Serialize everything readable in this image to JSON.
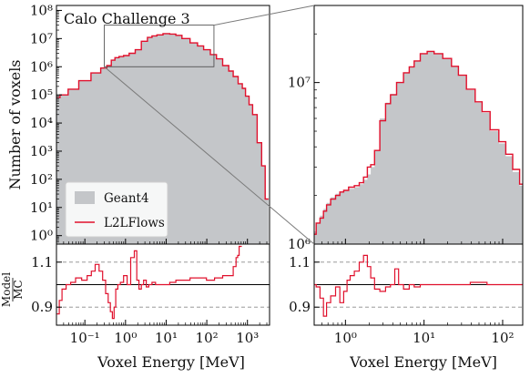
{
  "colors": {
    "geant4_fill": "#c4c6c9",
    "l2lflows_line": "#e0102c",
    "axis": "#000000",
    "zoom_line": "#7a7a7a",
    "ref_dashed": "#8a8a8a"
  },
  "figure": {
    "panel_title": "Calo Challenge 3",
    "ylabel_main": "Number of voxels",
    "ylabel_ratio_num": "Model",
    "ylabel_ratio_den": "MC",
    "xlabel_left": "Voxel Energy [MeV]",
    "xlabel_right": "Voxel Energy [MeV]",
    "legend_geant4": "Geant4",
    "legend_l2lflows": "L2LFlows"
  },
  "chart_data": [
    {
      "type": "area",
      "panel": "left-main",
      "title": "Calo Challenge 3",
      "xlabel": "",
      "ylabel": "Number of voxels",
      "xscale": "log",
      "yscale": "log",
      "xlim": [
        0.02,
        3500
      ],
      "ylim": [
        0.5,
        150000000.0
      ],
      "yticks": [
        {
          "v": 1,
          "label": "10⁰"
        },
        {
          "v": 10,
          "label": "10¹"
        },
        {
          "v": 100,
          "label": "10²"
        },
        {
          "v": 1000,
          "label": "10³"
        },
        {
          "v": 10000,
          "label": "10⁴"
        },
        {
          "v": 100000,
          "label": "10⁵"
        },
        {
          "v": 1000000,
          "label": "10⁶"
        },
        {
          "v": 10000000,
          "label": "10⁷"
        },
        {
          "v": 100000000,
          "label": "10⁸"
        }
      ],
      "legend_position": "bottom-left",
      "zoom_box": {
        "x": [
          0.3,
          150
        ],
        "y": [
          1000000.0,
          30000000.0
        ]
      },
      "series": [
        {
          "name": "Geant4",
          "style": "filled",
          "x": [
            0.02,
            0.03,
            0.05,
            0.1,
            0.2,
            0.3,
            0.4,
            0.5,
            0.6,
            0.8,
            1,
            1.5,
            2,
            3,
            4,
            5,
            7,
            10,
            15,
            20,
            30,
            50,
            70,
            100,
            150,
            200,
            300,
            400,
            500,
            700,
            800,
            1000,
            1200,
            1500,
            2000,
            2500,
            3000
          ],
          "y": [
            80000,
            100000,
            160000,
            320000,
            600000,
            900000,
            1100000,
            1700000,
            2100000,
            2300000,
            2500000,
            3000000,
            4000000,
            8000000,
            11000000,
            12500000,
            13500000,
            15000000,
            14500000,
            13000000,
            10000000,
            7000000,
            5500000,
            4000000,
            2700000,
            1900000,
            1100000,
            700000,
            450000,
            250000,
            170000,
            90000,
            45000,
            20000,
            2000,
            300,
            20
          ]
        },
        {
          "name": "L2LFlows",
          "style": "step",
          "x": [
            0.02,
            0.03,
            0.05,
            0.1,
            0.2,
            0.3,
            0.4,
            0.5,
            0.6,
            0.8,
            1,
            1.5,
            2,
            3,
            4,
            5,
            7,
            10,
            15,
            20,
            30,
            50,
            70,
            100,
            150,
            200,
            300,
            400,
            500,
            700,
            800,
            1000,
            1200,
            1500,
            2000,
            2500,
            3000
          ],
          "y": [
            80000,
            100000,
            160000,
            320000,
            600000,
            900000,
            1100000,
            1700000,
            2100000,
            2300000,
            2500000,
            3000000,
            4000000,
            8000000,
            11000000,
            12500000,
            13500000,
            15000000,
            14500000,
            13000000,
            10000000,
            7000000,
            5500000,
            4000000,
            2700000,
            1900000,
            1100000,
            700000,
            450000,
            250000,
            170000,
            90000,
            45000,
            20000,
            2000,
            300,
            20
          ]
        }
      ]
    },
    {
      "type": "line",
      "panel": "left-ratio",
      "xlabel": "Voxel Energy [MeV]",
      "ylabel": "Model / MC",
      "xscale": "log",
      "xlim": [
        0.02,
        3500
      ],
      "ylim": [
        0.82,
        1.18
      ],
      "xticks": [
        {
          "v": 0.1,
          "label": "10⁻¹"
        },
        {
          "v": 1,
          "label": "10⁰"
        },
        {
          "v": 10,
          "label": "10¹"
        },
        {
          "v": 100,
          "label": "10²"
        },
        {
          "v": 1000,
          "label": "10³"
        }
      ],
      "yticks": [
        {
          "v": 0.9,
          "label": "0.9"
        },
        {
          "v": 1.1,
          "label": "1.1"
        }
      ],
      "reference_lines": [
        0.9,
        1.0,
        1.1
      ],
      "series": [
        {
          "name": "L2LFlows",
          "x": [
            0.022,
            0.025,
            0.03,
            0.04,
            0.05,
            0.07,
            0.1,
            0.13,
            0.16,
            0.2,
            0.25,
            0.3,
            0.35,
            0.4,
            0.45,
            0.5,
            0.55,
            0.6,
            0.7,
            0.8,
            1.0,
            1.2,
            1.5,
            1.8,
            2.0,
            2.3,
            2.6,
            3.0,
            3.5,
            4,
            5,
            6,
            8,
            10,
            15,
            20,
            30,
            50,
            80,
            120,
            200,
            300,
            400,
            500,
            550,
            600,
            650,
            700
          ],
          "y": [
            0.87,
            0.93,
            0.98,
            1.0,
            1.01,
            1.03,
            1.02,
            1.04,
            1.06,
            1.09,
            1.06,
            1.02,
            0.96,
            0.92,
            0.88,
            0.85,
            0.9,
            0.98,
            1.0,
            1.01,
            1.04,
            1.0,
            1.12,
            1.15,
            1.02,
            0.98,
            1.0,
            1.02,
            0.99,
            1.0,
            1.01,
            1.0,
            1.0,
            1.0,
            1.01,
            1.02,
            1.02,
            1.03,
            1.03,
            1.02,
            1.03,
            1.04,
            1.04,
            1.08,
            1.12,
            1.13,
            1.17,
            1.17
          ]
        }
      ]
    },
    {
      "type": "area",
      "panel": "right-main",
      "xlabel": "",
      "ylabel": "",
      "xscale": "log",
      "yscale": "log",
      "xlim": [
        0.4,
        180
      ],
      "ylim": [
        1000000,
        30000000
      ],
      "yticks": [
        {
          "v": 1000000,
          "label": "10⁶"
        },
        {
          "v": 10000000,
          "label": "10⁷"
        }
      ],
      "series": [
        {
          "name": "Geant4",
          "style": "filled",
          "x": [
            0.4,
            0.45,
            0.5,
            0.55,
            0.6,
            0.7,
            0.8,
            0.9,
            1.0,
            1.2,
            1.4,
            1.6,
            1.8,
            2.0,
            2.2,
            2.5,
            3,
            3.5,
            4,
            5,
            6,
            7,
            8,
            10,
            12,
            15,
            20,
            25,
            30,
            40,
            50,
            60,
            80,
            100,
            120,
            150,
            180
          ],
          "y": [
            1200000,
            1350000,
            1500000,
            1650000,
            1800000,
            1950000,
            2050000,
            2100000,
            2150000,
            2200000,
            2250000,
            2350000,
            2500000,
            2700000,
            3000000,
            3800000,
            6000000,
            7500000,
            8500000,
            10000000,
            11500000,
            12500000,
            13500000,
            15000000,
            15500000,
            15000000,
            14000000,
            12500000,
            11000000,
            9000000,
            7500000,
            6500000,
            5000000,
            4200000,
            3500000,
            2800000,
            2300000
          ]
        },
        {
          "name": "L2LFlows",
          "style": "step",
          "x": [
            0.4,
            0.45,
            0.5,
            0.55,
            0.6,
            0.7,
            0.8,
            0.9,
            1.0,
            1.2,
            1.4,
            1.6,
            1.8,
            2.0,
            2.2,
            2.5,
            3,
            3.5,
            4,
            5,
            6,
            7,
            8,
            10,
            12,
            15,
            20,
            25,
            30,
            40,
            50,
            60,
            80,
            100,
            120,
            150,
            180
          ],
          "y": [
            1150000,
            1350000,
            1450000,
            1600000,
            1750000,
            1900000,
            2000000,
            2100000,
            2150000,
            2250000,
            2300000,
            2400000,
            2600000,
            3000000,
            3100000,
            3800000,
            5800000,
            7400000,
            8400000,
            10000000,
            11500000,
            12500000,
            13600000,
            15100000,
            15600000,
            15100000,
            14100000,
            12600000,
            11100000,
            9100000,
            7600000,
            6600000,
            5100000,
            4300000,
            3600000,
            2900000,
            2350000
          ]
        }
      ]
    },
    {
      "type": "line",
      "panel": "right-ratio",
      "xlabel": "Voxel Energy [MeV]",
      "ylabel": "",
      "xscale": "log",
      "xlim": [
        0.4,
        180
      ],
      "ylim": [
        0.82,
        1.18
      ],
      "xticks": [
        {
          "v": 1,
          "label": "10⁰"
        },
        {
          "v": 10,
          "label": "10¹"
        },
        {
          "v": 100,
          "label": "10²"
        }
      ],
      "yticks": [
        {
          "v": 0.9,
          "label": "0.9"
        },
        {
          "v": 1.1,
          "label": "1.1"
        }
      ],
      "reference_lines": [
        0.9,
        1.0,
        1.1
      ],
      "series": [
        {
          "name": "L2LFlows",
          "x": [
            0.4,
            0.45,
            0.5,
            0.55,
            0.6,
            0.7,
            0.8,
            0.9,
            1.0,
            1.1,
            1.2,
            1.4,
            1.6,
            1.8,
            2.0,
            2.2,
            2.5,
            3,
            3.5,
            4,
            4.5,
            5,
            6,
            7,
            8,
            10,
            12,
            15,
            20,
            30,
            50,
            80,
            120,
            180
          ],
          "y": [
            1.0,
            0.99,
            0.94,
            0.86,
            0.92,
            0.95,
            0.99,
            0.92,
            0.97,
            1.02,
            1.04,
            1.06,
            1.1,
            1.13,
            1.08,
            1.03,
            0.98,
            0.97,
            0.99,
            1.0,
            1.07,
            1.0,
            0.98,
            1.0,
            0.99,
            1.0,
            1.0,
            1.0,
            1.0,
            1.0,
            1.01,
            1.0,
            1.0,
            1.0
          ]
        }
      ]
    }
  ]
}
